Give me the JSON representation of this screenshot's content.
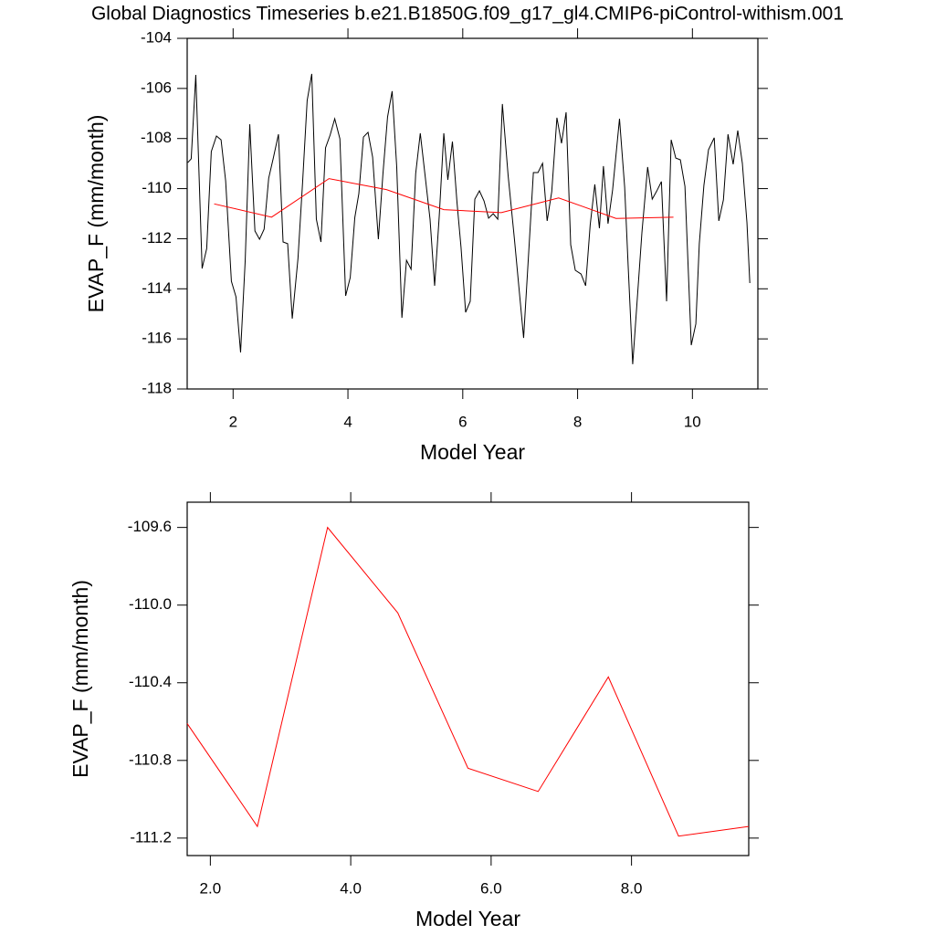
{
  "chart_data": [
    {
      "type": "line",
      "title": "Global Diagnostics Timeseries b.e21.B1850G.f09_g17_gl4.CMIP6-piControl-withism.001",
      "x_label": "Model Year",
      "y_label": "EVAP_F (mm/month)",
      "xlim": [
        1.2,
        11.14
      ],
      "xticks": [
        2,
        4,
        6,
        8,
        10
      ],
      "ylim": [
        -118,
        -104
      ],
      "yticks": [
        -104,
        -106,
        -108,
        -110,
        -112,
        -114,
        -116,
        -118
      ],
      "series": [
        {
          "color": "#000000",
          "x": [
            1.21,
            1.27,
            1.35,
            1.46,
            1.54,
            1.62,
            1.71,
            1.79,
            1.87,
            1.97,
            2.05,
            2.13,
            2.21,
            2.29,
            2.38,
            2.46,
            2.54,
            2.62,
            2.7,
            2.79,
            2.87,
            2.95,
            3.03,
            3.13,
            3.21,
            3.29,
            3.37,
            3.45,
            3.53,
            3.61,
            3.69,
            3.77,
            3.86,
            3.96,
            4.04,
            4.12,
            4.19,
            4.27,
            4.35,
            4.43,
            4.53,
            4.61,
            4.69,
            4.77,
            4.85,
            4.94,
            5.02,
            5.1,
            5.18,
            5.26,
            5.34,
            5.43,
            5.51,
            5.59,
            5.67,
            5.74,
            5.82,
            5.9,
            5.97,
            6.05,
            6.13,
            6.21,
            6.29,
            6.37,
            6.45,
            6.53,
            6.61,
            6.69,
            6.79,
            6.9,
            6.98,
            7.06,
            7.15,
            7.23,
            7.31,
            7.39,
            7.47,
            7.55,
            7.64,
            7.72,
            7.8,
            7.88,
            7.96,
            8.06,
            8.14,
            8.22,
            8.3,
            8.38,
            8.45,
            8.53,
            8.61,
            8.73,
            8.82,
            8.88,
            8.96,
            9.04,
            9.12,
            9.22,
            9.3,
            9.38,
            9.46,
            9.55,
            9.63,
            9.71,
            9.79,
            9.87,
            9.98,
            10.06,
            10.12,
            10.2,
            10.28,
            10.38,
            10.46,
            10.54,
            10.62,
            10.71,
            10.79,
            10.87,
            10.95,
            11.0
          ],
          "values": [
            -108.96,
            -108.81,
            -105.46,
            -113.19,
            -112.39,
            -108.52,
            -107.9,
            -108.05,
            -109.69,
            -113.7,
            -114.32,
            -116.54,
            -112.9,
            -107.43,
            -111.69,
            -112.02,
            -111.62,
            -109.58,
            -108.78,
            -107.83,
            -112.13,
            -112.2,
            -115.19,
            -112.79,
            -109.76,
            -106.48,
            -105.42,
            -111.22,
            -112.13,
            -108.37,
            -107.86,
            -107.21,
            -108.01,
            -114.28,
            -113.55,
            -111.15,
            -110.2,
            -107.94,
            -107.75,
            -108.74,
            -112.02,
            -109.4,
            -107.14,
            -106.11,
            -109.14,
            -115.16,
            -112.86,
            -113.22,
            -109.4,
            -107.79,
            -109.4,
            -111.22,
            -113.88,
            -111.11,
            -107.79,
            -109.65,
            -108.12,
            -110.56,
            -112.35,
            -114.94,
            -114.5,
            -110.42,
            -110.09,
            -110.49,
            -111.18,
            -111.0,
            -111.22,
            -106.62,
            -109.47,
            -112.02,
            -113.99,
            -115.96,
            -112.49,
            -109.36,
            -109.36,
            -108.99,
            -111.29,
            -110.12,
            -107.17,
            -108.19,
            -106.95,
            -112.24,
            -113.26,
            -113.41,
            -113.88,
            -111.44,
            -109.83,
            -111.58,
            -109.1,
            -111.4,
            -110.05,
            -107.21,
            -109.94,
            -113.04,
            -117.01,
            -114.39,
            -111.77,
            -109.14,
            -110.42,
            -110.09,
            -109.72,
            -114.5,
            -108.05,
            -108.78,
            -108.85,
            -109.91,
            -116.25,
            -115.4,
            -112.2,
            -109.87,
            -108.45,
            -107.97,
            -111.29,
            -110.45,
            -107.83,
            -109.03,
            -107.68,
            -108.99,
            -111.36,
            -113.77
          ]
        },
        {
          "color": "#ff0000",
          "x": [
            1.67,
            2.67,
            3.67,
            4.67,
            5.67,
            6.67,
            7.67,
            8.67,
            9.67
          ],
          "values": [
            -110.61,
            -111.14,
            -109.6,
            -110.04,
            -110.84,
            -110.96,
            -110.37,
            -111.19,
            -111.14
          ]
        }
      ]
    },
    {
      "type": "line",
      "x_label": "Model Year",
      "y_label": "EVAP_F (mm/month)",
      "xlim": [
        1.67,
        9.67
      ],
      "xticks": [
        {
          "value": 2,
          "label": "2.0"
        },
        {
          "value": 4,
          "label": "4.0"
        },
        {
          "value": 6,
          "label": "6.0"
        },
        {
          "value": 8,
          "label": "8.0"
        }
      ],
      "ylim": [
        -111.29,
        -109.47
      ],
      "yticks": [
        -109.6,
        {
          "value": -110,
          "label": "-110.0"
        },
        -110.4,
        -110.8,
        -111.2
      ],
      "series": [
        {
          "color": "#ff0000",
          "x": [
            1.67,
            2.67,
            3.67,
            4.67,
            5.67,
            6.67,
            7.67,
            8.67,
            9.67
          ],
          "values": [
            -110.61,
            -111.14,
            -109.6,
            -110.04,
            -110.84,
            -110.96,
            -110.37,
            -111.19,
            -111.14
          ]
        }
      ]
    }
  ]
}
